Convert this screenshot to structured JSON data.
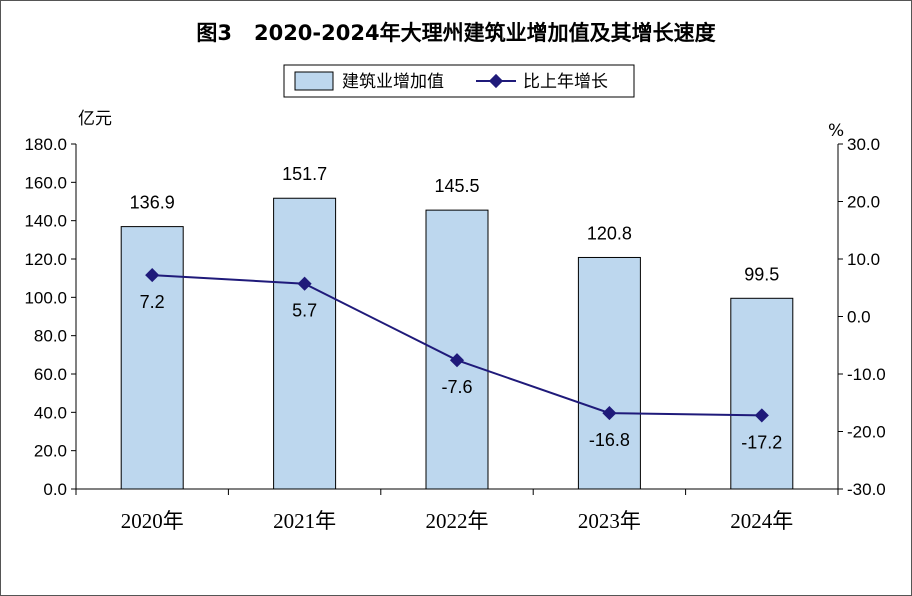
{
  "chart_data": {
    "type": "bar",
    "title": "图3   2020-2024年大理州建筑业增加值及其增长速度",
    "categories": [
      "2020年",
      "2021年",
      "2022年",
      "2023年",
      "2024年"
    ],
    "series": [
      {
        "name": "建筑业增加值",
        "type": "bar",
        "axis": "left",
        "values": [
          136.9,
          151.7,
          145.5,
          120.8,
          99.5
        ],
        "color": "#bdd7ee"
      },
      {
        "name": "比上年增长",
        "type": "line",
        "axis": "right",
        "values": [
          7.2,
          5.7,
          -7.6,
          -16.8,
          -17.2
        ],
        "color": "#1f1a7a"
      }
    ],
    "y_left": {
      "unit": "亿元",
      "min": 0,
      "max": 180,
      "ticks": [
        "0.0",
        "20.0",
        "40.0",
        "60.0",
        "80.0",
        "100.0",
        "120.0",
        "140.0",
        "160.0",
        "180.0"
      ]
    },
    "y_right": {
      "unit": "%",
      "min": -30,
      "max": 30,
      "ticks": [
        "-30.0",
        "-20.0",
        "-10.0",
        "0.0",
        "10.0",
        "20.0",
        "30.0"
      ]
    },
    "bar_labels": [
      "136.9",
      "151.7",
      "145.5",
      "120.8",
      "99.5"
    ],
    "line_labels": [
      "7.2",
      "5.7",
      "-7.6",
      "-16.8",
      "-17.2"
    ],
    "legend": "top-center",
    "grid": false
  }
}
